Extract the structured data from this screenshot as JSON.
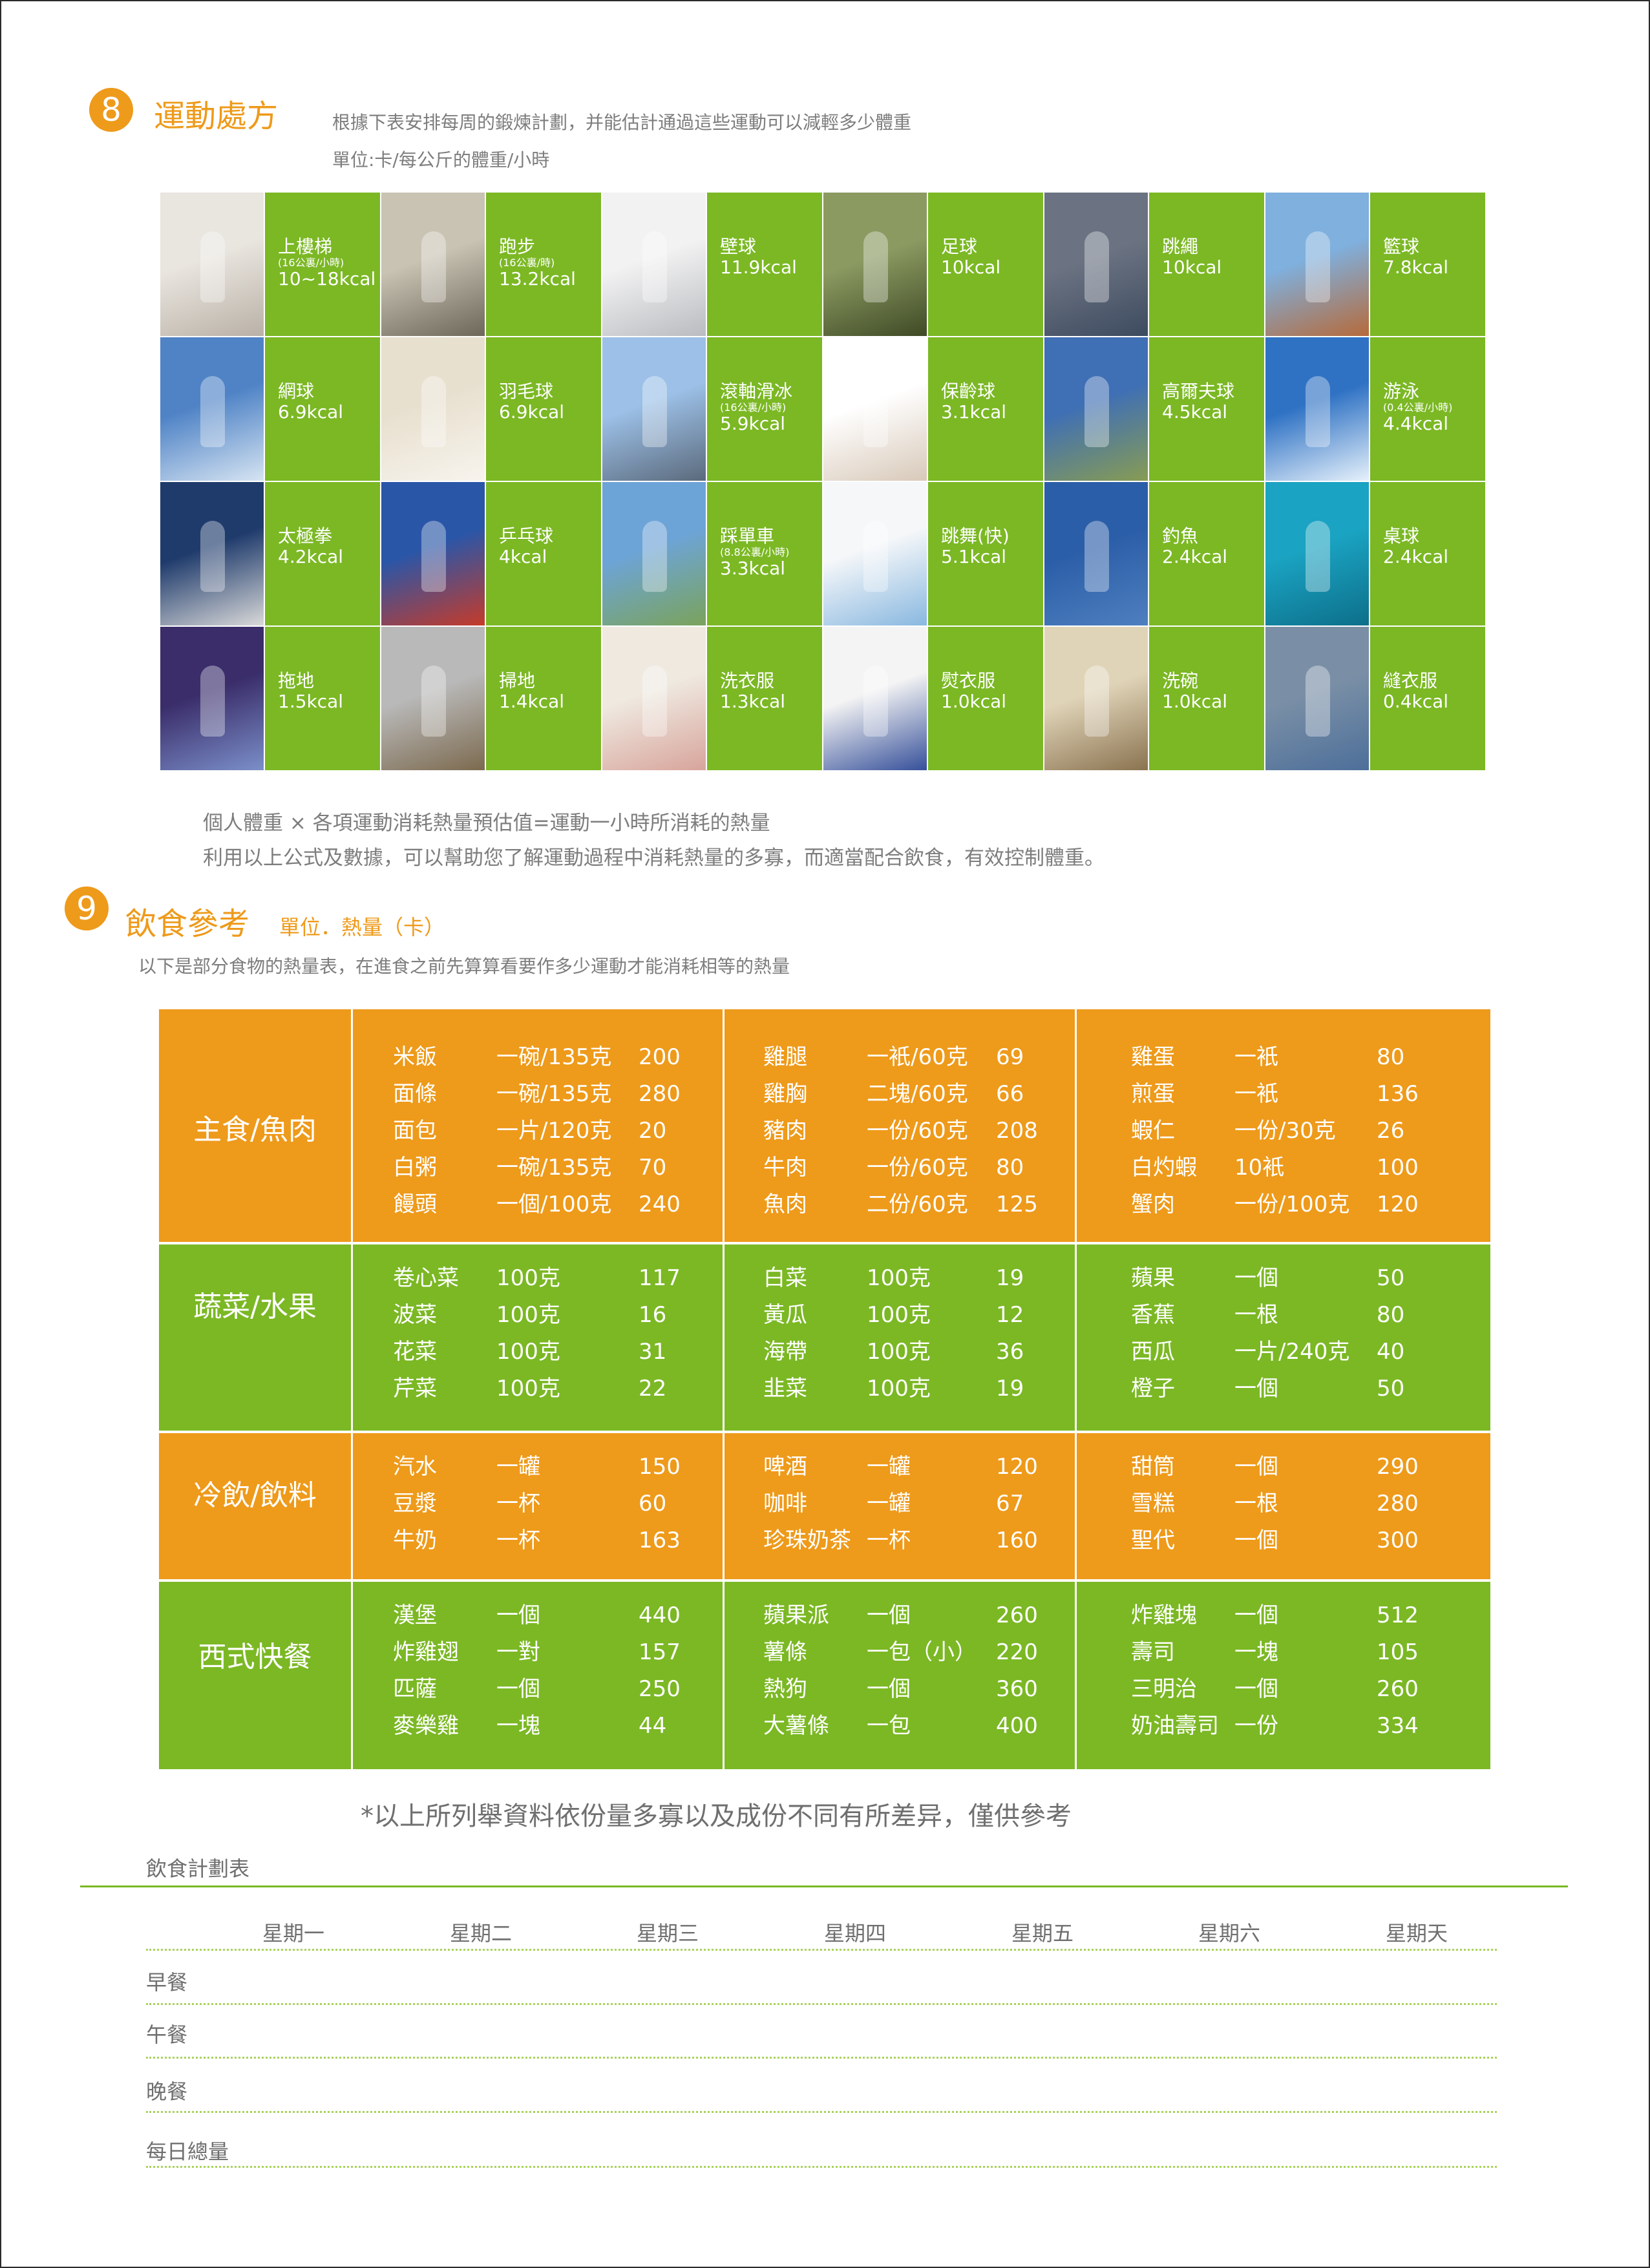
{
  "section8": {
    "number": "8",
    "title": "運動處方",
    "desc": "根據下表安排每周的鍛煉計劃，并能估計通過這些運動可以減輕多少體重",
    "unit": "單位:卡/每公斤的體重/小時",
    "activities": [
      {
        "name": "上樓梯",
        "sub": "(16公裏/小時)",
        "val": "10~18kcal"
      },
      {
        "name": "跑步",
        "sub": "(16公裏/時)",
        "val": "13.2kcal"
      },
      {
        "name": "壁球",
        "sub": "",
        "val": "11.9kcal"
      },
      {
        "name": "足球",
        "sub": "",
        "val": "10kcal"
      },
      {
        "name": "跳繩",
        "sub": "",
        "val": "10kcal"
      },
      {
        "name": "籃球",
        "sub": "",
        "val": "7.8kcal"
      },
      {
        "name": "網球",
        "sub": "",
        "val": "6.9kcal"
      },
      {
        "name": "羽毛球",
        "sub": "",
        "val": "6.9kcal"
      },
      {
        "name": "滾軸滑冰",
        "sub": "(16公裏/小時)",
        "val": "5.9kcal"
      },
      {
        "name": "保齡球",
        "sub": "",
        "val": "3.1kcal"
      },
      {
        "name": "高爾夫球",
        "sub": "",
        "val": "4.5kcal"
      },
      {
        "name": "游泳",
        "sub": "(0.4公裏/小時)",
        "val": "4.4kcal"
      },
      {
        "name": "太極拳",
        "sub": "",
        "val": "4.2kcal"
      },
      {
        "name": "乒乓球",
        "sub": "",
        "val": "4kcal"
      },
      {
        "name": "踩單車",
        "sub": "(8.8公裏/小時)",
        "val": "3.3kcal"
      },
      {
        "name": "跳舞(快)",
        "sub": "",
        "val": "5.1kcal"
      },
      {
        "name": "釣魚",
        "sub": "",
        "val": "2.4kcal"
      },
      {
        "name": "桌球",
        "sub": "",
        "val": "2.4kcal"
      },
      {
        "name": "拖地",
        "sub": "",
        "val": "1.5kcal"
      },
      {
        "name": "掃地",
        "sub": "",
        "val": "1.4kcal"
      },
      {
        "name": "洗衣服",
        "sub": "",
        "val": "1.3kcal"
      },
      {
        "name": "熨衣服",
        "sub": "",
        "val": "1.0kcal"
      },
      {
        "name": "洗碗",
        "sub": "",
        "val": "1.0kcal"
      },
      {
        "name": "縫衣服",
        "sub": "",
        "val": "0.4kcal"
      }
    ],
    "formula": "個人體重 × 各項運動消耗熱量預估值=運動一小時所消耗的熱量",
    "note": "利用以上公式及數據，可以幫助您了解運動過程中消耗熱量的多寡，而適當配合飲食，有效控制體重。"
  },
  "section9": {
    "number": "9",
    "title": "飲食參考",
    "unit": "單位．熱量（卡）",
    "desc": "以下是部分食物的熱量表，在進食之前先算算看要作多少運動才能消耗相等的熱量",
    "colors": {
      "orange": "#ee9a1a",
      "green": "#7bb824"
    },
    "rows": [
      {
        "category": "主食/魚肉",
        "color": "orange",
        "cols": [
          [
            [
              "米飯",
              "一碗/135克",
              "200"
            ],
            [
              "面條",
              "一碗/135克",
              "280"
            ],
            [
              "面包",
              "一片/120克",
              "20"
            ],
            [
              "白粥",
              "一碗/135克",
              "70"
            ],
            [
              "饅頭",
              "一個/100克",
              "240"
            ]
          ],
          [
            [
              "雞腿",
              "一衹/60克",
              "69"
            ],
            [
              "雞胸",
              "二塊/60克",
              "66"
            ],
            [
              "豬肉",
              "一份/60克",
              "208"
            ],
            [
              "牛肉",
              "一份/60克",
              "80"
            ],
            [
              "魚肉",
              "二份/60克",
              "125"
            ]
          ],
          [
            [
              "雞蛋",
              "一衹",
              "80"
            ],
            [
              "煎蛋",
              "一衹",
              "136"
            ],
            [
              "蝦仁",
              "一份/30克",
              "26"
            ],
            [
              "白灼蝦",
              "10衹",
              "100"
            ],
            [
              "蟹肉",
              "一份/100克",
              "120"
            ]
          ]
        ]
      },
      {
        "category": "蔬菜/水果",
        "color": "green",
        "cols": [
          [
            [
              "卷心菜",
              "100克",
              "117"
            ],
            [
              "波菜",
              "100克",
              "16"
            ],
            [
              "花菜",
              "100克",
              "31"
            ],
            [
              "芹菜",
              "100克",
              "22"
            ]
          ],
          [
            [
              "白菜",
              "100克",
              "19"
            ],
            [
              "黃瓜",
              "100克",
              "12"
            ],
            [
              "海帶",
              "100克",
              "36"
            ],
            [
              "韭菜",
              "100克",
              "19"
            ]
          ],
          [
            [
              "蘋果",
              "一個",
              "50"
            ],
            [
              "香蕉",
              "一根",
              "80"
            ],
            [
              "西瓜",
              "一片/240克",
              "40"
            ],
            [
              "橙子",
              "一個",
              "50"
            ]
          ]
        ]
      },
      {
        "category": "冷飲/飲料",
        "color": "orange",
        "cols": [
          [
            [
              "汽水",
              "一罐",
              "150"
            ],
            [
              "豆漿",
              "一杯",
              "60"
            ],
            [
              "牛奶",
              "一杯",
              "163"
            ]
          ],
          [
            [
              "啤酒",
              "一罐",
              "120"
            ],
            [
              "咖啡",
              "一罐",
              "67"
            ],
            [
              "珍珠奶茶",
              "一杯",
              "160"
            ]
          ],
          [
            [
              "甜筒",
              "一個",
              "290"
            ],
            [
              "雪糕",
              "一根",
              "280"
            ],
            [
              "聖代",
              "一個",
              "300"
            ]
          ]
        ]
      },
      {
        "category": "西式快餐",
        "color": "green",
        "cols": [
          [
            [
              "漢堡",
              "一個",
              "440"
            ],
            [
              "炸雞翅",
              "一對",
              "157"
            ],
            [
              "匹薩",
              "一個",
              "250"
            ],
            [
              "麥樂雞",
              "一塊",
              "44"
            ]
          ],
          [
            [
              "蘋果派",
              "一個",
              "260"
            ],
            [
              "薯條",
              "一包（小）",
              "220"
            ],
            [
              "熱狗",
              "一個",
              "360"
            ],
            [
              "大薯條",
              "一包",
              "400"
            ]
          ],
          [
            [
              "炸雞塊",
              "一個",
              "512"
            ],
            [
              "壽司",
              "一塊",
              "105"
            ],
            [
              "三明治",
              "一個",
              "260"
            ],
            [
              "奶油壽司",
              "一份",
              "334"
            ]
          ]
        ]
      }
    ],
    "footnote": "*以上所列舉資料依份量多寡以及成份不同有所差异，僅供參考"
  },
  "plan": {
    "title": "飲食計劃表",
    "days": [
      "星期一",
      "星期二",
      "星期三",
      "星期四",
      "星期五",
      "星期六",
      "星期天"
    ],
    "meals": [
      "早餐",
      "午餐",
      "晚餐",
      "每日總量"
    ]
  }
}
